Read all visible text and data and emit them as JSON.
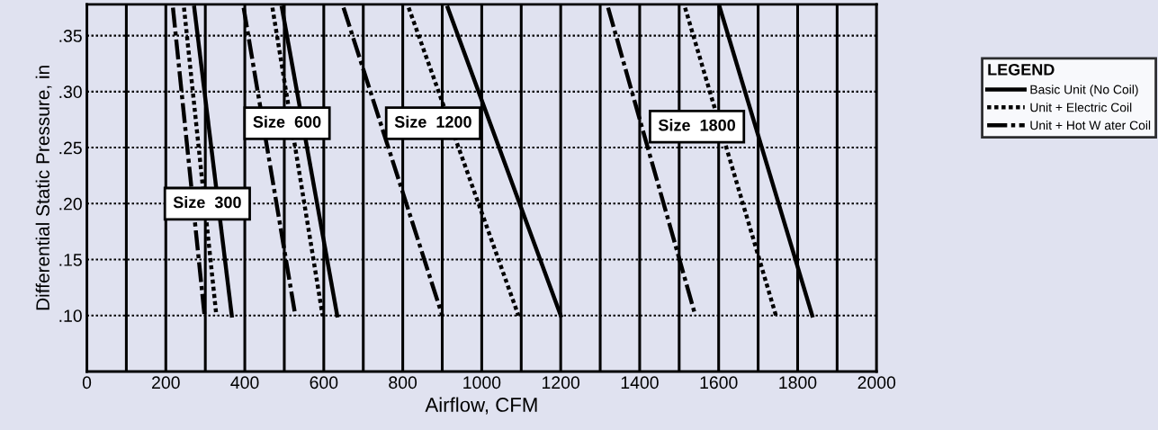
{
  "chart_data": {
    "type": "line",
    "xlabel": "Airflow, CFM",
    "ylabel": "Differential Static Pressure, in",
    "legend_title": "LEGEND",
    "legend": "right",
    "grid": true,
    "marker": "none",
    "xlim": [
      0,
      2000
    ],
    "xticks": [
      0,
      200,
      400,
      600,
      800,
      1000,
      1200,
      1400,
      1600,
      1800,
      2000
    ],
    "ylim": [
      0.05,
      0.378
    ],
    "yticks": [
      {
        "value": 0.1,
        "label": ".10"
      },
      {
        "value": 0.15,
        "label": ".15"
      },
      {
        "value": 0.2,
        "label": ".20"
      },
      {
        "value": 0.25,
        "label": ".25"
      },
      {
        "value": 0.3,
        "label": ".30"
      },
      {
        "value": 0.35,
        "label": ".35"
      }
    ],
    "series": [
      {
        "name": "Basic Unit (No Coil)",
        "color": "#000000",
        "line_style": "solid",
        "x": [
          272,
          367
        ],
        "values": [
          0.375,
          0.1
        ]
      },
      {
        "name": "Unit + Electric Coil",
        "color": "#000000",
        "line_style": "dotted",
        "x": [
          246,
          328
        ],
        "values": [
          0.375,
          0.1
        ]
      },
      {
        "name": "Unit + Hot W ater Coil",
        "color": "#000000",
        "line_style": "dashdot",
        "x": [
          218,
          298
        ],
        "values": [
          0.375,
          0.1
        ]
      },
      {
        "color": "#000000",
        "line_style": "solid",
        "x": [
          494,
          634
        ],
        "values": [
          0.375,
          0.1
        ]
      },
      {
        "color": "#000000",
        "line_style": "dotted",
        "x": [
          470,
          597
        ],
        "values": [
          0.375,
          0.1
        ]
      },
      {
        "color": "#000000",
        "line_style": "dashdot",
        "x": [
          397,
          528
        ],
        "values": [
          0.375,
          0.1
        ]
      },
      {
        "color": "#000000",
        "line_style": "solid",
        "x": [
          914,
          1200
        ],
        "values": [
          0.375,
          0.1
        ]
      },
      {
        "color": "#000000",
        "line_style": "dotted",
        "x": [
          815,
          1093
        ],
        "values": [
          0.375,
          0.1
        ]
      },
      {
        "color": "#000000",
        "line_style": "dashdot",
        "x": [
          650,
          900
        ],
        "values": [
          0.375,
          0.1
        ]
      },
      {
        "color": "#000000",
        "line_style": "solid",
        "x": [
          1603,
          1837
        ],
        "values": [
          0.375,
          0.1
        ]
      },
      {
        "color": "#000000",
        "line_style": "dotted",
        "x": [
          1515,
          1745
        ],
        "values": [
          0.375,
          0.1
        ]
      },
      {
        "color": "#000000",
        "line_style": "dashdot",
        "x": [
          1320,
          1541
        ],
        "values": [
          0.375,
          0.1
        ]
      }
    ],
    "annotations": [
      "Size  300",
      "Size  600",
      "Size  1200",
      "Size  1800"
    ]
  }
}
